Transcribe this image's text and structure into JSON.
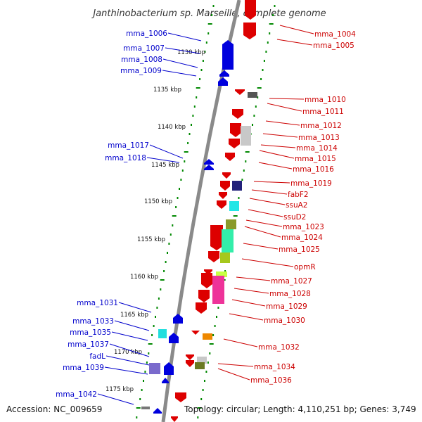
{
  "title": "Janthinobacterium sp. Marseille, complete genome",
  "footer": {
    "accession": "Accession: NC_009659",
    "summary": "Topology: circular; Length: 4,110,251 bp; Genes: 3,749"
  },
  "colors": {
    "forward_strand": "#0000dd",
    "reverse_strand": "#dd0000",
    "backbone": "#888888",
    "tick": "#008800"
  },
  "scale": {
    "unit": "kbp",
    "labels": [
      "1130 kbp",
      "1135 kbp",
      "1140 kbp",
      "1145 kbp",
      "1150 kbp",
      "1155 kbp",
      "1160 kbp",
      "1165 kbp",
      "1170 kbp",
      "1175 kbp"
    ]
  },
  "genes_left": [
    {
      "label": "mma_1006"
    },
    {
      "label": "mma_1007"
    },
    {
      "label": "mma_1008"
    },
    {
      "label": "mma_1009"
    },
    {
      "label": "mma_1017"
    },
    {
      "label": "mma_1018"
    },
    {
      "label": "mma_1031"
    },
    {
      "label": "mma_1033"
    },
    {
      "label": "mma_1035"
    },
    {
      "label": "mma_1037"
    },
    {
      "label": "fadL"
    },
    {
      "label": "mma_1039"
    },
    {
      "label": "mma_1042"
    }
  ],
  "genes_right": [
    {
      "label": "mma_1004"
    },
    {
      "label": "mma_1005"
    },
    {
      "label": "mma_1010"
    },
    {
      "label": "mma_1011"
    },
    {
      "label": "mma_1012"
    },
    {
      "label": "mma_1013"
    },
    {
      "label": "mma_1014"
    },
    {
      "label": "mma_1015"
    },
    {
      "label": "mma_1016"
    },
    {
      "label": "mma_1019"
    },
    {
      "label": "fabF2"
    },
    {
      "label": "ssuA2"
    },
    {
      "label": "ssuD2"
    },
    {
      "label": "mma_1023"
    },
    {
      "label": "mma_1024"
    },
    {
      "label": "mma_1025"
    },
    {
      "label": "opmR"
    },
    {
      "label": "mma_1027"
    },
    {
      "label": "mma_1028"
    },
    {
      "label": "mma_1029"
    },
    {
      "label": "mma_1030"
    },
    {
      "label": "mma_1032"
    },
    {
      "label": "mma_1034"
    },
    {
      "label": "mma_1036"
    }
  ]
}
